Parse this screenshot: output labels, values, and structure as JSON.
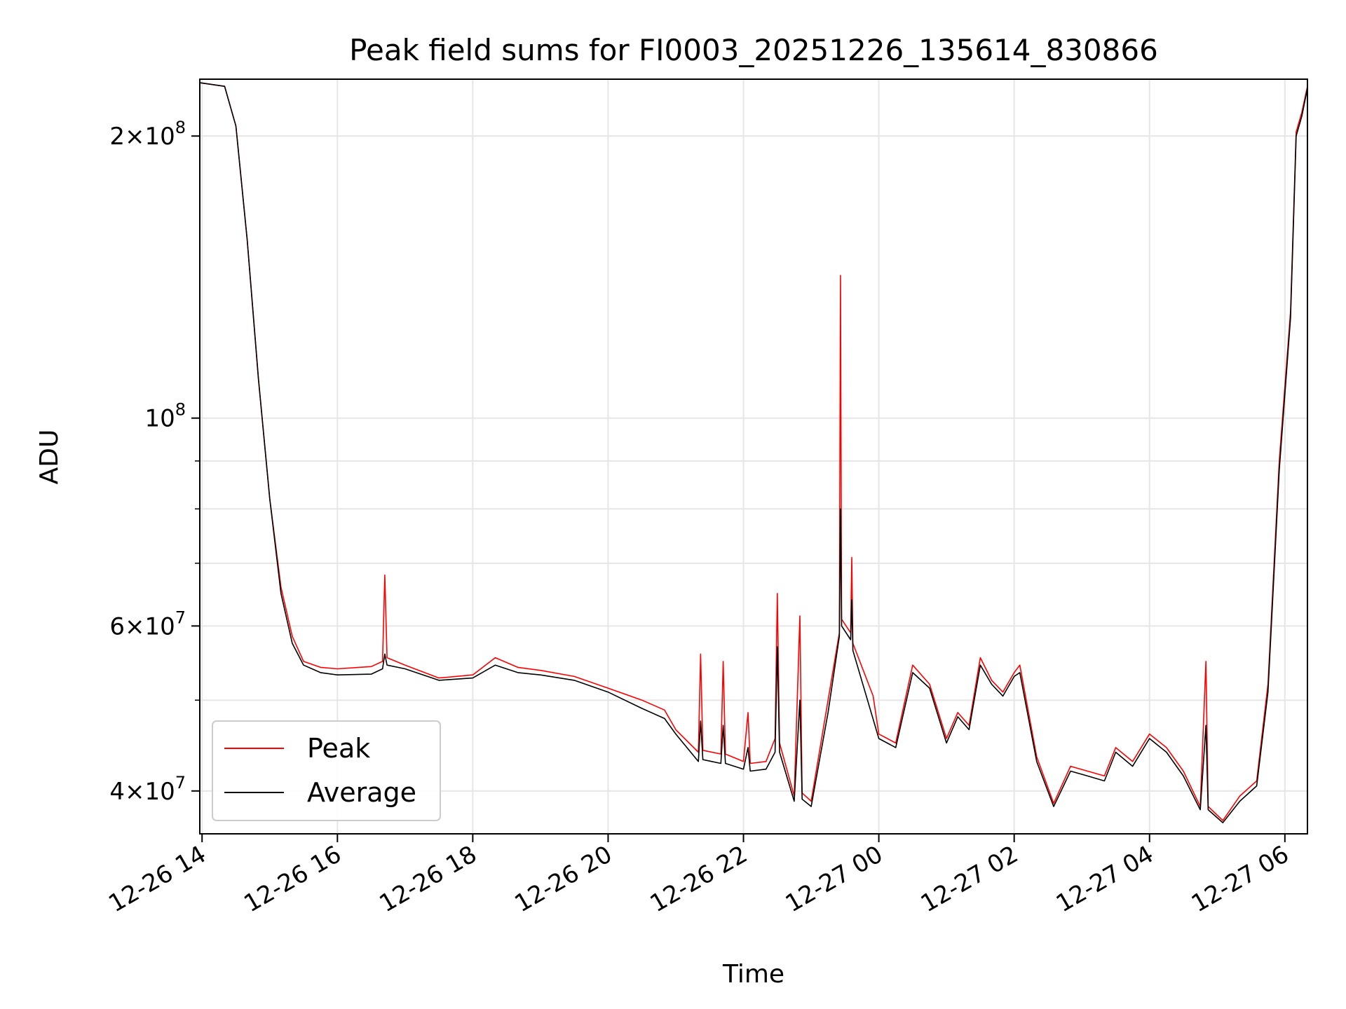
{
  "chart_data": {
    "type": "line",
    "title": "Peak field sums for FI0003_20251226_135614_830866",
    "xlabel": "Time",
    "ylabel": "ADU",
    "y_scale": "log",
    "ylim": [
      36000000,
      230000000
    ],
    "xlim": [
      "12-26 13:58",
      "12-27 06:20"
    ],
    "grid": true,
    "legend_position": "lower-left",
    "x_ticks": [
      "12-26 14",
      "12-26 16",
      "12-26 18",
      "12-26 20",
      "12-26 22",
      "12-27 00",
      "12-27 02",
      "12-27 04",
      "12-27 06"
    ],
    "y_tick_labels": [
      {
        "value": 40000000,
        "mantissa": "4",
        "exponent": "7"
      },
      {
        "value": 60000000,
        "mantissa": "6",
        "exponent": "7"
      },
      {
        "value": 100000000,
        "mantissa": "",
        "exponent": "8"
      },
      {
        "value": 200000000,
        "mantissa": "2",
        "exponent": "8"
      }
    ],
    "y_minor_ticks": [
      50000000,
      70000000,
      80000000,
      90000000
    ],
    "series": [
      {
        "name": "Peak",
        "color": "#ff0000",
        "points": [
          [
            "12-26 13:58",
            228000000
          ],
          [
            "12-26 14:20",
            226000000
          ],
          [
            "12-26 14:30",
            205000000
          ],
          [
            "12-26 14:40",
            155000000
          ],
          [
            "12-26 14:50",
            110000000
          ],
          [
            "12-26 15:00",
            82000000
          ],
          [
            "12-26 15:10",
            66000000
          ],
          [
            "12-26 15:20",
            58500000
          ],
          [
            "12-26 15:30",
            55000000
          ],
          [
            "12-26 15:45",
            54200000
          ],
          [
            "12-26 16:00",
            54000000
          ],
          [
            "12-26 16:30",
            54300000
          ],
          [
            "12-26 16:40",
            55000000
          ],
          [
            "12-26 16:42",
            68000000
          ],
          [
            "12-26 16:44",
            55500000
          ],
          [
            "12-26 17:00",
            54500000
          ],
          [
            "12-26 17:30",
            52800000
          ],
          [
            "12-26 18:00",
            53200000
          ],
          [
            "12-26 18:20",
            55500000
          ],
          [
            "12-26 18:40",
            54200000
          ],
          [
            "12-26 19:00",
            53800000
          ],
          [
            "12-26 19:30",
            53000000
          ],
          [
            "12-26 20:00",
            51500000
          ],
          [
            "12-26 20:30",
            50000000
          ],
          [
            "12-26 20:50",
            48800000
          ],
          [
            "12-26 21:00",
            46500000
          ],
          [
            "12-26 21:20",
            44000000
          ],
          [
            "12-26 21:22",
            56000000
          ],
          [
            "12-26 21:24",
            44200000
          ],
          [
            "12-26 21:40",
            43800000
          ],
          [
            "12-26 21:42",
            55000000
          ],
          [
            "12-26 21:44",
            43800000
          ],
          [
            "12-26 22:00",
            43000000
          ],
          [
            "12-26 22:04",
            48500000
          ],
          [
            "12-26 22:06",
            42800000
          ],
          [
            "12-26 22:20",
            43000000
          ],
          [
            "12-26 22:28",
            45500000
          ],
          [
            "12-26 22:30",
            65000000
          ],
          [
            "12-26 22:32",
            45000000
          ],
          [
            "12-26 22:45",
            39500000
          ],
          [
            "12-26 22:50",
            61500000
          ],
          [
            "12-26 22:52",
            39800000
          ],
          [
            "12-26 23:00",
            39000000
          ],
          [
            "12-26 23:15",
            50000000
          ],
          [
            "12-26 23:25",
            59000000
          ],
          [
            "12-26 23:26",
            142000000
          ],
          [
            "12-26 23:27",
            61000000
          ],
          [
            "12-26 23:35",
            59000000
          ],
          [
            "12-26 23:36",
            71000000
          ],
          [
            "12-26 23:37",
            57500000
          ],
          [
            "12-26 23:55",
            50500000
          ],
          [
            "12-27 00:00",
            46000000
          ],
          [
            "12-27 00:15",
            45000000
          ],
          [
            "12-27 00:30",
            54500000
          ],
          [
            "12-27 00:45",
            52000000
          ],
          [
            "12-27 01:00",
            45500000
          ],
          [
            "12-27 01:10",
            48500000
          ],
          [
            "12-27 01:20",
            47000000
          ],
          [
            "12-27 01:30",
            55500000
          ],
          [
            "12-27 01:40",
            52500000
          ],
          [
            "12-27 01:50",
            51000000
          ],
          [
            "12-27 02:00",
            53500000
          ],
          [
            "12-27 02:05",
            54500000
          ],
          [
            "12-27 02:20",
            43500000
          ],
          [
            "12-27 02:35",
            38800000
          ],
          [
            "12-27 02:50",
            42500000
          ],
          [
            "12-27 03:05",
            42000000
          ],
          [
            "12-27 03:20",
            41500000
          ],
          [
            "12-27 03:30",
            44500000
          ],
          [
            "12-27 03:45",
            43000000
          ],
          [
            "12-27 04:00",
            46000000
          ],
          [
            "12-27 04:15",
            44500000
          ],
          [
            "12-27 04:30",
            42000000
          ],
          [
            "12-27 04:45",
            38500000
          ],
          [
            "12-27 04:50",
            55000000
          ],
          [
            "12-27 04:52",
            38500000
          ],
          [
            "12-27 05:05",
            37200000
          ],
          [
            "12-27 05:20",
            39500000
          ],
          [
            "12-27 05:35",
            41000000
          ],
          [
            "12-27 05:45",
            52000000
          ],
          [
            "12-27 05:55",
            90000000
          ],
          [
            "12-27 06:05",
            130000000
          ],
          [
            "12-27 06:10",
            202000000
          ],
          [
            "12-27 06:15",
            212000000
          ],
          [
            "12-27 06:20",
            226000000
          ]
        ]
      },
      {
        "name": "Average",
        "color": "#000000",
        "points": [
          [
            "12-26 13:58",
            228000000
          ],
          [
            "12-26 14:20",
            226000000
          ],
          [
            "12-26 14:30",
            205000000
          ],
          [
            "12-26 14:40",
            155000000
          ],
          [
            "12-26 14:50",
            110000000
          ],
          [
            "12-26 15:00",
            82000000
          ],
          [
            "12-26 15:10",
            65000000
          ],
          [
            "12-26 15:20",
            57500000
          ],
          [
            "12-26 15:30",
            54500000
          ],
          [
            "12-26 15:45",
            53500000
          ],
          [
            "12-26 16:00",
            53200000
          ],
          [
            "12-26 16:30",
            53300000
          ],
          [
            "12-26 16:40",
            54000000
          ],
          [
            "12-26 16:42",
            56000000
          ],
          [
            "12-26 16:44",
            54500000
          ],
          [
            "12-26 17:00",
            54000000
          ],
          [
            "12-26 17:30",
            52500000
          ],
          [
            "12-26 18:00",
            52800000
          ],
          [
            "12-26 18:20",
            54500000
          ],
          [
            "12-26 18:40",
            53500000
          ],
          [
            "12-26 19:00",
            53200000
          ],
          [
            "12-26 19:30",
            52500000
          ],
          [
            "12-26 20:00",
            51000000
          ],
          [
            "12-26 20:30",
            49000000
          ],
          [
            "12-26 20:50",
            47800000
          ],
          [
            "12-26 21:00",
            46000000
          ],
          [
            "12-26 21:20",
            43000000
          ],
          [
            "12-26 21:22",
            47500000
          ],
          [
            "12-26 21:24",
            43200000
          ],
          [
            "12-26 21:40",
            42800000
          ],
          [
            "12-26 21:42",
            47000000
          ],
          [
            "12-26 21:44",
            42800000
          ],
          [
            "12-26 22:00",
            42200000
          ],
          [
            "12-26 22:04",
            44500000
          ],
          [
            "12-26 22:06",
            42000000
          ],
          [
            "12-26 22:20",
            42200000
          ],
          [
            "12-26 22:28",
            44000000
          ],
          [
            "12-26 22:30",
            57000000
          ],
          [
            "12-26 22:32",
            44000000
          ],
          [
            "12-26 22:45",
            39000000
          ],
          [
            "12-26 22:50",
            50000000
          ],
          [
            "12-26 22:52",
            39200000
          ],
          [
            "12-26 23:00",
            38500000
          ],
          [
            "12-26 23:15",
            48500000
          ],
          [
            "12-26 23:25",
            58500000
          ],
          [
            "12-26 23:26",
            80000000
          ],
          [
            "12-26 23:27",
            60000000
          ],
          [
            "12-26 23:35",
            58000000
          ],
          [
            "12-26 23:36",
            64000000
          ],
          [
            "12-26 23:37",
            56500000
          ],
          [
            "12-27 00:00",
            45500000
          ],
          [
            "12-27 00:15",
            44500000
          ],
          [
            "12-27 00:30",
            53500000
          ],
          [
            "12-27 00:45",
            51500000
          ],
          [
            "12-27 01:00",
            45000000
          ],
          [
            "12-27 01:10",
            48000000
          ],
          [
            "12-27 01:20",
            46500000
          ],
          [
            "12-27 01:30",
            54500000
          ],
          [
            "12-27 01:40",
            52000000
          ],
          [
            "12-27 01:50",
            50500000
          ],
          [
            "12-27 02:00",
            53000000
          ],
          [
            "12-27 02:05",
            53500000
          ],
          [
            "12-27 02:20",
            43000000
          ],
          [
            "12-27 02:35",
            38500000
          ],
          [
            "12-27 02:50",
            42000000
          ],
          [
            "12-27 03:05",
            41500000
          ],
          [
            "12-27 03:20",
            41000000
          ],
          [
            "12-27 03:30",
            44000000
          ],
          [
            "12-27 03:45",
            42500000
          ],
          [
            "12-27 04:00",
            45500000
          ],
          [
            "12-27 04:15",
            44000000
          ],
          [
            "12-27 04:30",
            41500000
          ],
          [
            "12-27 04:45",
            38200000
          ],
          [
            "12-27 04:50",
            47000000
          ],
          [
            "12-27 04:52",
            38200000
          ],
          [
            "12-27 05:05",
            37000000
          ],
          [
            "12-27 05:20",
            39000000
          ],
          [
            "12-27 05:35",
            40500000
          ],
          [
            "12-27 05:45",
            51000000
          ],
          [
            "12-27 05:55",
            88000000
          ],
          [
            "12-27 06:05",
            128000000
          ],
          [
            "12-27 06:10",
            200000000
          ],
          [
            "12-27 06:15",
            210000000
          ],
          [
            "12-27 06:20",
            225000000
          ]
        ]
      }
    ]
  }
}
